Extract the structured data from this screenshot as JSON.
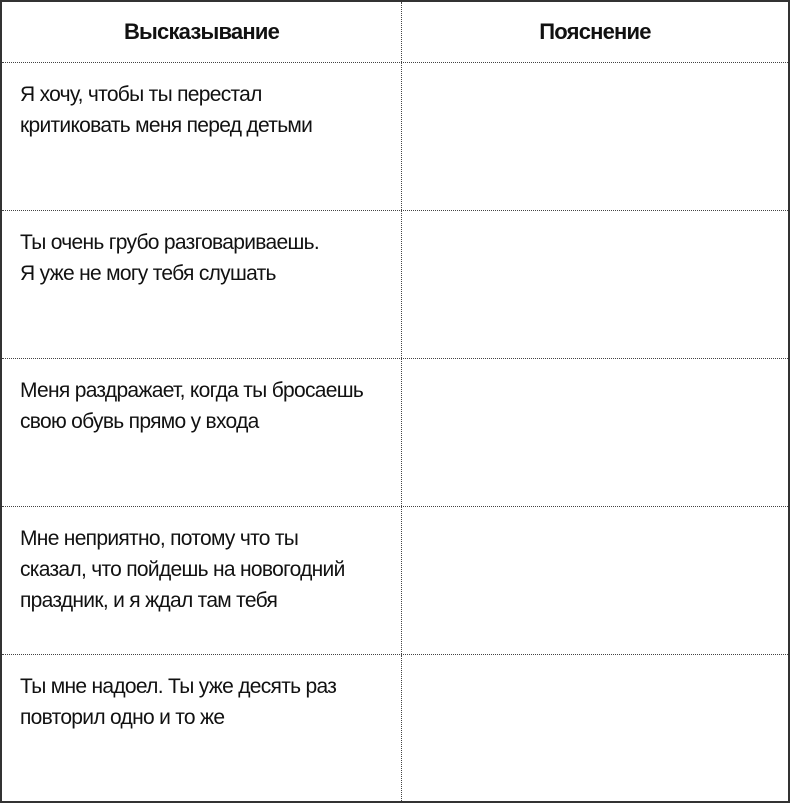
{
  "table": {
    "headers": [
      "Высказывание",
      "Пояснение"
    ],
    "rows": [
      {
        "statement": [
          "Я хочу, чтобы ты перестал",
          "критиковать меня перед детьми"
        ],
        "explanation": ""
      },
      {
        "statement": [
          "Ты очень грубо разговариваешь.",
          "Я уже не могу тебя слушать"
        ],
        "explanation": ""
      },
      {
        "statement": [
          "Меня раздражает, когда ты бросаешь",
          "свою обувь прямо у входа"
        ],
        "explanation": ""
      },
      {
        "statement": [
          "Мне неприятно, потому что ты",
          "сказал, что пойдешь на новогодний",
          "праздник, и я ждал там тебя"
        ],
        "explanation": ""
      },
      {
        "statement": [
          "Ты мне надоел. Ты уже десять раз",
          "повторил одно и то же"
        ],
        "explanation": ""
      }
    ]
  }
}
